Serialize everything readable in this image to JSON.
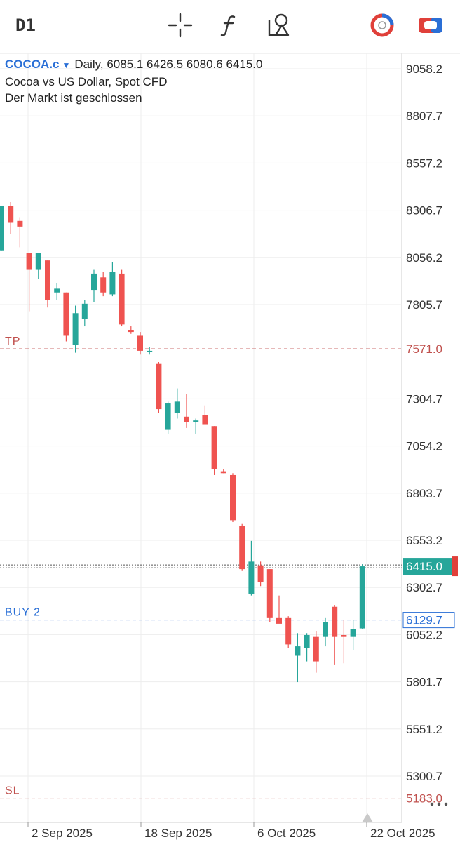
{
  "toolbar": {
    "timeframe": "D1",
    "icons": [
      "crosshair-icon",
      "function-icon",
      "objects-icon",
      "trade-indicator-icon",
      "toggle-icon"
    ],
    "accent_red": "#e0403a",
    "accent_blue": "#2a6fd6"
  },
  "header": {
    "symbol": "COCOA.c",
    "ohlc_text": "Daily, 6085.1 6426.5 6080.6 6415.0",
    "description": "Cocoa vs US Dollar, Spot CFD",
    "status": "Der Markt ist geschlossen"
  },
  "chart_data": {
    "type": "candlestick",
    "y_ticks": [
      "9058.2",
      "8807.7",
      "8557.2",
      "8306.7",
      "8056.2",
      "7805.7",
      "7304.7",
      "7054.2",
      "6803.7",
      "6553.2",
      "6302.7",
      "6052.2",
      "5801.7",
      "5551.2",
      "5300.7"
    ],
    "x_ticks": [
      "2 Sep 2025",
      "18 Sep 2025",
      "6 Oct 2025",
      "22 Oct 2025"
    ],
    "colors": {
      "up": "#26a69a",
      "down": "#ef5350"
    },
    "levels": [
      {
        "label": "TP",
        "value": 7571.0,
        "value_text": "7571.0",
        "color": "#c0504d"
      },
      {
        "label": "BUY 2",
        "value": 6129.7,
        "value_text": "6129.7",
        "color": "#2a6fd6"
      },
      {
        "label": "SL",
        "value": 5183.0,
        "value_text": "5183.0",
        "color": "#c0504d"
      }
    ],
    "current_price": 6415.0,
    "current_price_text": "6415.0",
    "candles": [
      {
        "open": 8090,
        "high": 8330,
        "low": 8090,
        "close": 8330
      },
      {
        "open": 8330,
        "high": 8350,
        "low": 8180,
        "close": 8240
      },
      {
        "open": 8250,
        "high": 8270,
        "low": 8110,
        "close": 8220
      },
      {
        "open": 8080,
        "high": 8080,
        "low": 7770,
        "close": 7990
      },
      {
        "open": 7990,
        "high": 8080,
        "low": 7940,
        "close": 8080
      },
      {
        "open": 8040,
        "high": 8040,
        "low": 7790,
        "close": 7830
      },
      {
        "open": 7870,
        "high": 7920,
        "low": 7830,
        "close": 7890
      },
      {
        "open": 7870,
        "high": 7870,
        "low": 7610,
        "close": 7640
      },
      {
        "open": 7590,
        "high": 7800,
        "low": 7550,
        "close": 7760
      },
      {
        "open": 7730,
        "high": 7830,
        "low": 7690,
        "close": 7810
      },
      {
        "open": 7880,
        "high": 7990,
        "low": 7820,
        "close": 7970
      },
      {
        "open": 7950,
        "high": 7980,
        "low": 7850,
        "close": 7870
      },
      {
        "open": 7860,
        "high": 8030,
        "low": 7850,
        "close": 7980
      },
      {
        "open": 7970,
        "high": 7990,
        "low": 7690,
        "close": 7700
      },
      {
        "open": 7670,
        "high": 7690,
        "low": 7650,
        "close": 7660
      },
      {
        "open": 7640,
        "high": 7660,
        "low": 7540,
        "close": 7560
      },
      {
        "open": 7560,
        "high": 7580,
        "low": 7540,
        "close": 7560
      },
      {
        "open": 7490,
        "high": 7500,
        "low": 7230,
        "close": 7250
      },
      {
        "open": 7140,
        "high": 7290,
        "low": 7120,
        "close": 7280
      },
      {
        "open": 7230,
        "high": 7360,
        "low": 7200,
        "close": 7290
      },
      {
        "open": 7210,
        "high": 7330,
        "low": 7150,
        "close": 7180
      },
      {
        "open": 7190,
        "high": 7200,
        "low": 7120,
        "close": 7190
      },
      {
        "open": 7220,
        "high": 7270,
        "low": 7180,
        "close": 7170
      },
      {
        "open": 7160,
        "high": 7160,
        "low": 6900,
        "close": 6930
      },
      {
        "open": 6920,
        "high": 6930,
        "low": 6910,
        "close": 6910
      },
      {
        "open": 6900,
        "high": 6910,
        "low": 6650,
        "close": 6660
      },
      {
        "open": 6630,
        "high": 6640,
        "low": 6390,
        "close": 6400
      },
      {
        "open": 6270,
        "high": 6550,
        "low": 6260,
        "close": 6440
      },
      {
        "open": 6420,
        "high": 6440,
        "low": 6310,
        "close": 6330
      },
      {
        "open": 6400,
        "high": 6400,
        "low": 6120,
        "close": 6140
      },
      {
        "open": 6140,
        "high": 6260,
        "low": 6120,
        "close": 6110
      },
      {
        "open": 6140,
        "high": 6150,
        "low": 5980,
        "close": 6000
      },
      {
        "open": 5940,
        "high": 6060,
        "low": 5800,
        "close": 5990
      },
      {
        "open": 5980,
        "high": 6060,
        "low": 5910,
        "close": 6050
      },
      {
        "open": 6040,
        "high": 6070,
        "low": 5850,
        "close": 5910
      },
      {
        "open": 6040,
        "high": 6140,
        "low": 5990,
        "close": 6120
      },
      {
        "open": 6200,
        "high": 6210,
        "low": 5890,
        "close": 6040
      },
      {
        "open": 6050,
        "high": 6130,
        "low": 5900,
        "close": 6040
      },
      {
        "open": 6040,
        "high": 6130,
        "low": 5970,
        "close": 6080
      },
      {
        "open": 6085.1,
        "high": 6426.5,
        "low": 6080.6,
        "close": 6415.0
      }
    ]
  }
}
